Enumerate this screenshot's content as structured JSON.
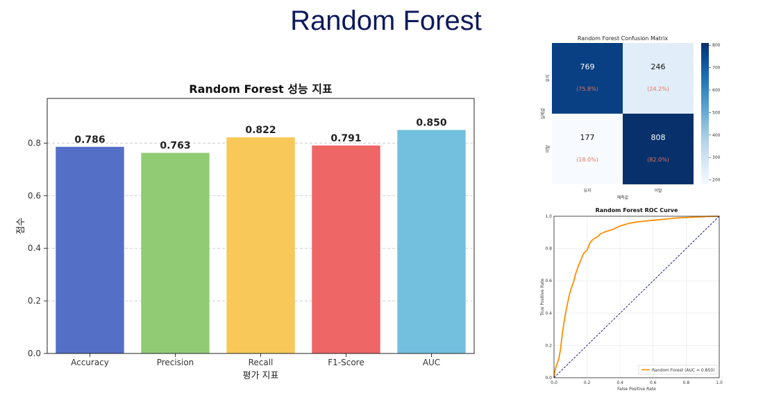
{
  "slide": {
    "title": "Random Forest"
  },
  "chart_data": [
    {
      "type": "bar",
      "title": "Random Forest 성능 지표",
      "xlabel": "평가 지표",
      "ylabel": "점수",
      "categories": [
        "Accuracy",
        "Precision",
        "Recall",
        "F1-Score",
        "AUC"
      ],
      "values": [
        0.786,
        0.763,
        0.822,
        0.791,
        0.85
      ],
      "value_labels": [
        "0.786",
        "0.763",
        "0.822",
        "0.791",
        "0.850"
      ],
      "colors": [
        "#5470c6",
        "#91cc75",
        "#f8c858",
        "#ee6666",
        "#73c0de"
      ],
      "ylim": [
        0,
        0.97
      ],
      "yticks": [
        0.0,
        0.2,
        0.4,
        0.6,
        0.8
      ],
      "ytick_labels": [
        "0.0",
        "0.2",
        "0.4",
        "0.6",
        "0.8"
      ],
      "grid": "y-dashed"
    },
    {
      "type": "heatmap",
      "title": "Random Forest Confusion Matrix",
      "xlabel": "예측값",
      "ylabel": "실제값",
      "x_categories": [
        "유지",
        "이탈"
      ],
      "y_categories": [
        "유지",
        "이탈"
      ],
      "values": [
        [
          769,
          246
        ],
        [
          177,
          808
        ]
      ],
      "value_labels": [
        [
          "769",
          "246"
        ],
        [
          "177",
          "808"
        ]
      ],
      "percent_labels": [
        [
          "(75.8%)",
          "(24.2%)"
        ],
        [
          "(18.0%)",
          "(82.0%)"
        ]
      ],
      "colormap": "Blues",
      "colorbar_range": [
        177,
        808
      ],
      "colorbar_ticks": [
        200,
        300,
        400,
        500,
        600,
        700,
        800
      ],
      "colorbar_tick_labels": [
        "200",
        "300",
        "400",
        "500",
        "600",
        "700",
        "800"
      ],
      "percent_color": "#e8745a"
    },
    {
      "type": "line",
      "title": "Random Forest ROC Curve",
      "xlabel": "False Positive Rate",
      "ylabel": "True Positive Rate",
      "xlim": [
        0,
        1
      ],
      "ylim": [
        0,
        1
      ],
      "xticks": [
        "0.0",
        "0.2",
        "0.4",
        "0.6",
        "0.8",
        "1.0"
      ],
      "yticks": [
        "0.0",
        "0.2",
        "0.4",
        "0.6",
        "0.8",
        "1.0"
      ],
      "grid": true,
      "legend": "lower-right",
      "series": [
        {
          "name": "Random Forest (AUC = 0.850)",
          "color": "#ff8c00",
          "x": [
            0,
            0.005,
            0.01,
            0.02,
            0.03,
            0.04,
            0.05,
            0.06,
            0.07,
            0.08,
            0.09,
            0.1,
            0.11,
            0.12,
            0.13,
            0.14,
            0.15,
            0.16,
            0.17,
            0.18,
            0.2,
            0.22,
            0.24,
            0.26,
            0.28,
            0.3,
            0.33,
            0.36,
            0.4,
            0.45,
            0.5,
            0.55,
            0.6,
            0.65,
            0.7,
            0.75,
            0.8,
            0.85,
            0.9,
            0.95,
            1.0
          ],
          "y": [
            0,
            0.04,
            0.06,
            0.09,
            0.12,
            0.18,
            0.27,
            0.34,
            0.4,
            0.45,
            0.5,
            0.54,
            0.57,
            0.6,
            0.64,
            0.67,
            0.7,
            0.72,
            0.75,
            0.77,
            0.79,
            0.84,
            0.86,
            0.87,
            0.89,
            0.9,
            0.91,
            0.92,
            0.94,
            0.955,
            0.965,
            0.97,
            0.975,
            0.98,
            0.985,
            0.99,
            0.992,
            0.995,
            0.997,
            0.999,
            1.0
          ]
        },
        {
          "name": "",
          "color": "#1a1a8c",
          "style": "dashed",
          "x": [
            0,
            1
          ],
          "y": [
            0,
            1
          ]
        }
      ]
    }
  ]
}
